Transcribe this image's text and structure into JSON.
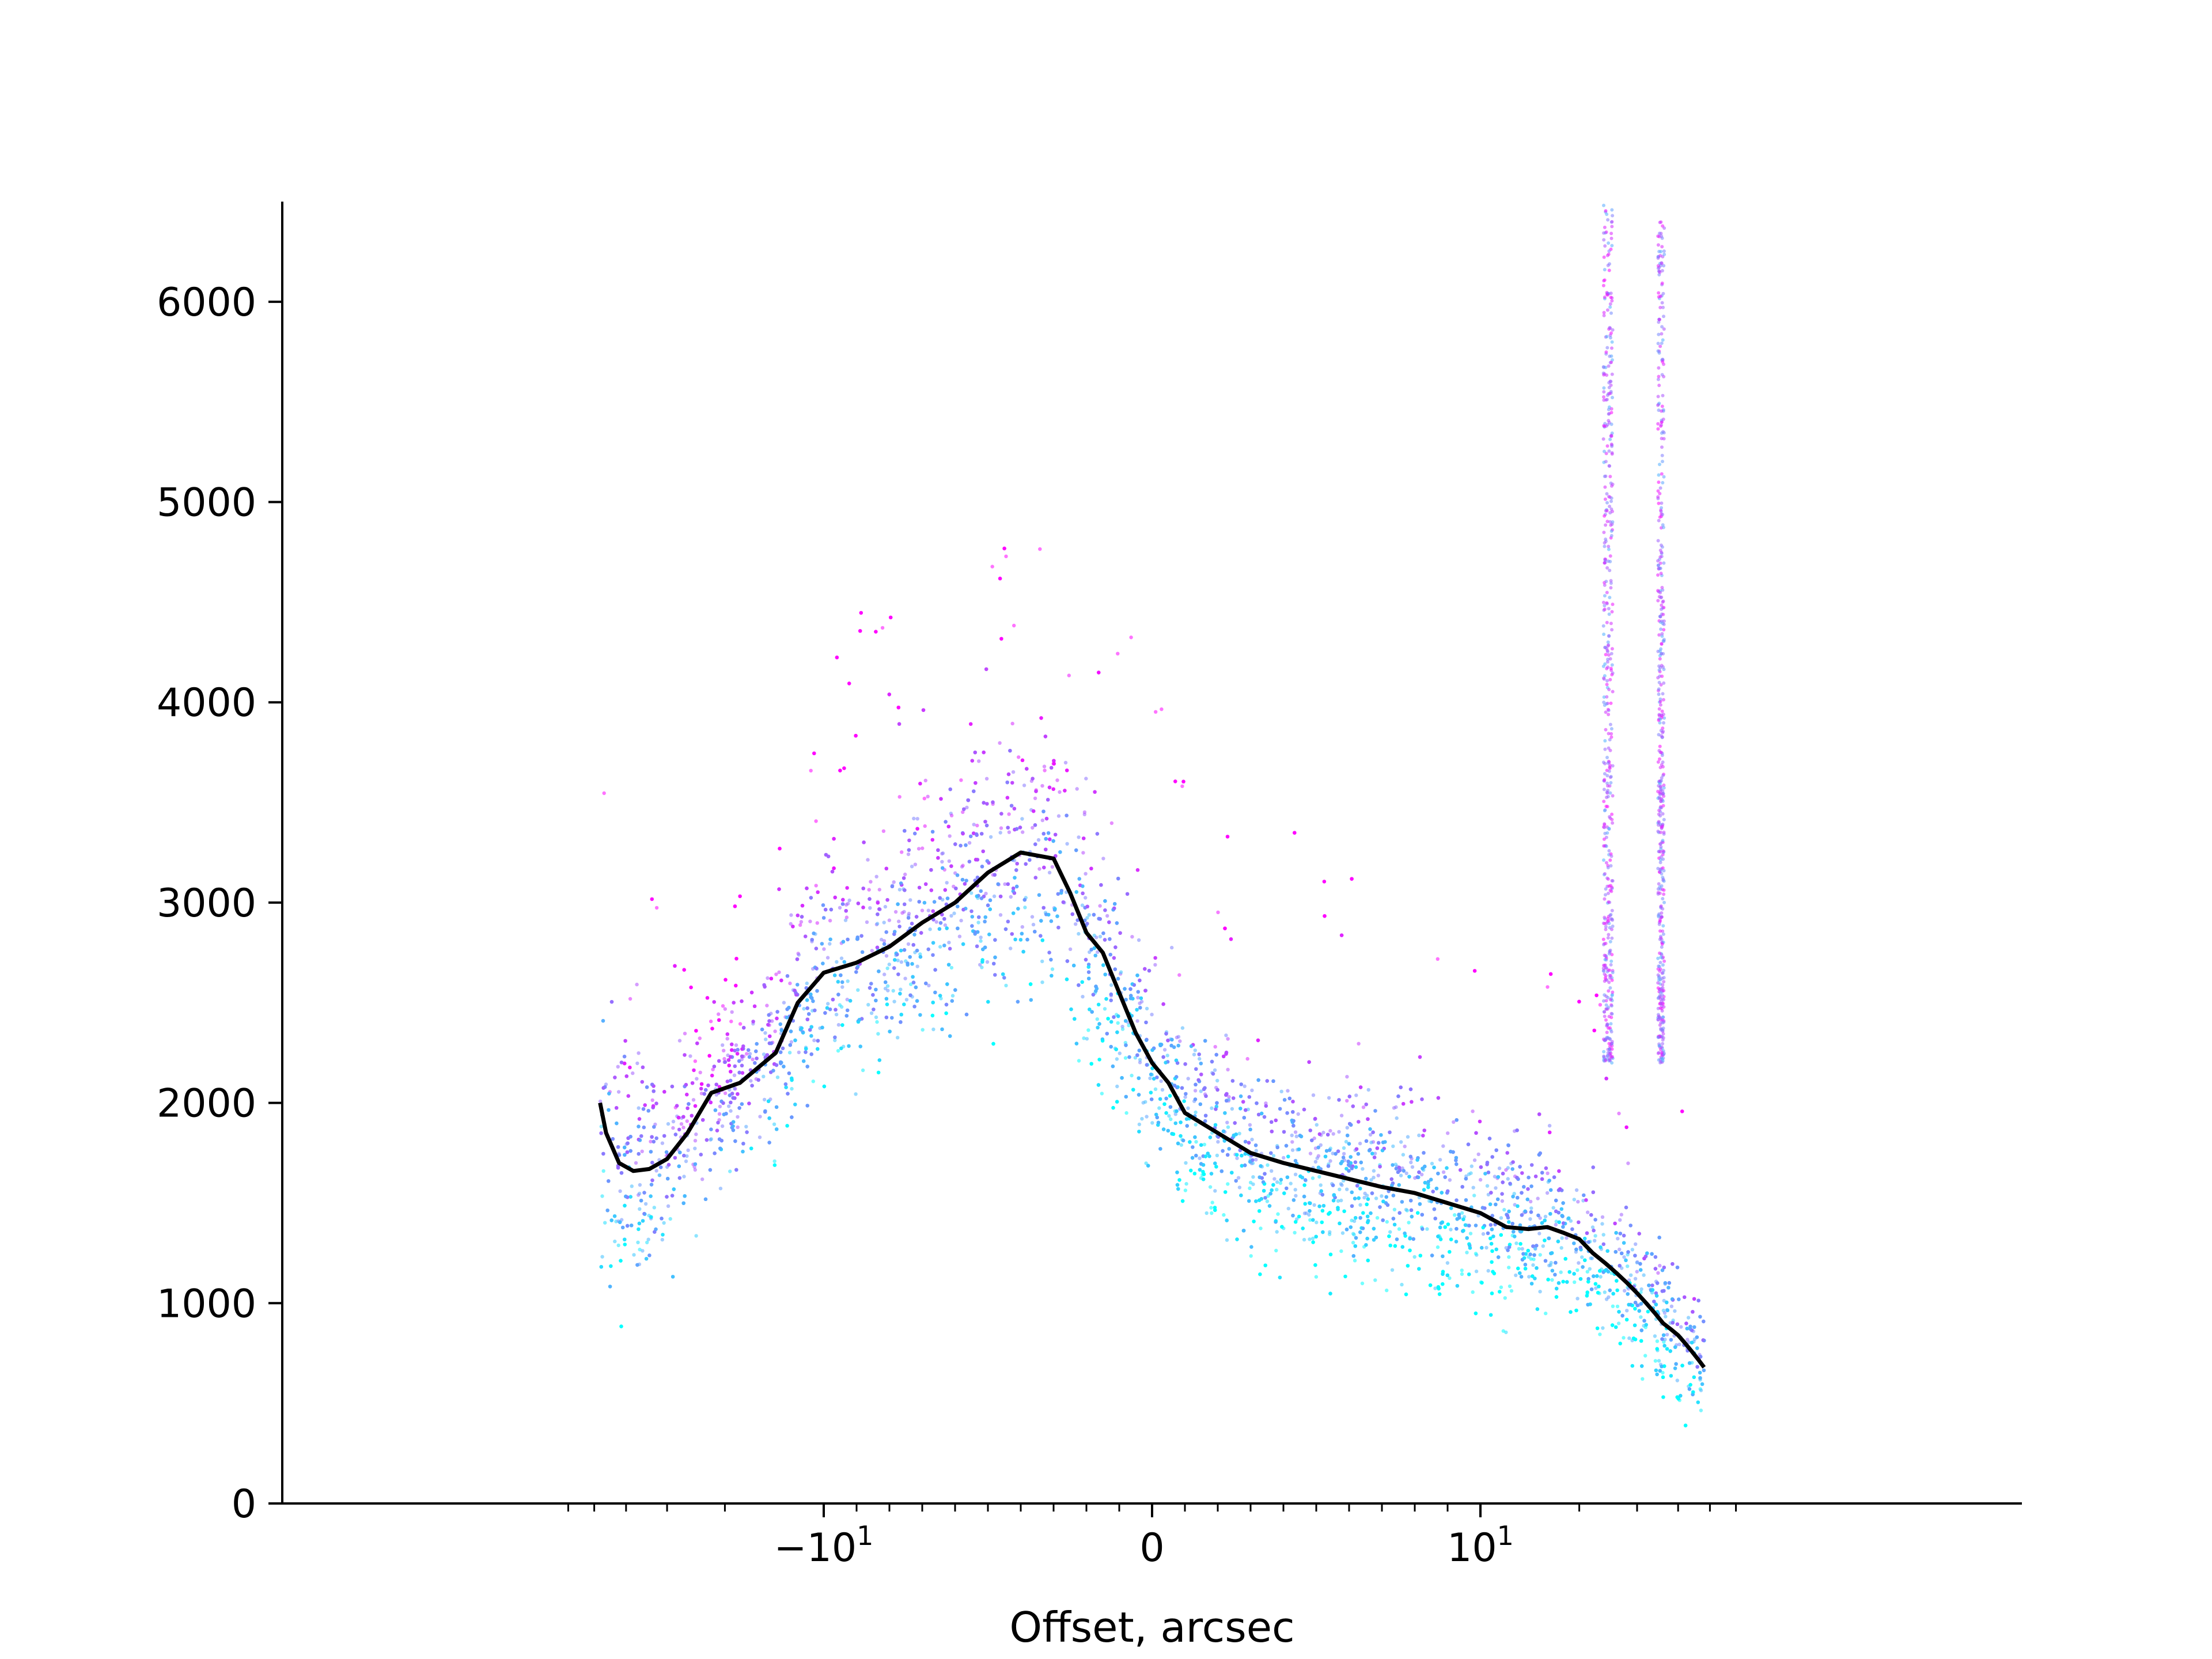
{
  "chart_data": {
    "type": "scatter",
    "title": "",
    "xlabel": "Offset, arcsec",
    "ylabel": "",
    "xscale": "symlog",
    "xlim": [
      -60,
      60
    ],
    "ylim": [
      0,
      6500
    ],
    "grid": false,
    "legend": "none",
    "y_ticks": [
      {
        "value": 0,
        "label": "0"
      },
      {
        "value": 1000,
        "label": "1000"
      },
      {
        "value": 2000,
        "label": "2000"
      },
      {
        "value": 3000,
        "label": "3000"
      },
      {
        "value": 4000,
        "label": "4000"
      },
      {
        "value": 5000,
        "label": "5000"
      },
      {
        "value": 6000,
        "label": "6000"
      }
    ],
    "x_ticks": [
      {
        "value": -10,
        "base": "−10",
        "exp": "1"
      },
      {
        "value": 0,
        "base": "0",
        "exp": ""
      },
      {
        "value": 10,
        "base": "10",
        "exp": "1"
      }
    ],
    "x_minor_ticks": [
      -60,
      -50,
      -40,
      -30,
      -20,
      -9,
      -8,
      -7,
      -6,
      -5,
      -4,
      -3,
      -2,
      -1,
      1,
      2,
      3,
      4,
      5,
      6,
      7,
      8,
      9,
      20,
      30,
      40,
      50,
      60
    ],
    "scatter_colormap": [
      "#00ffff",
      "#ff00ff"
    ],
    "series": [
      {
        "kind": "line",
        "color": "#000000",
        "x": [
          -48,
          -46,
          -42,
          -38,
          -34,
          -30,
          -26,
          -22,
          -18,
          -14,
          -12,
          -10,
          -9,
          -8,
          -7,
          -6,
          -5,
          -4,
          -3,
          -2.5,
          -2,
          -1.5,
          -1,
          -0.5,
          0,
          0.5,
          1,
          1.5,
          2,
          2.5,
          3,
          4,
          5,
          6,
          7,
          8,
          9,
          10,
          12,
          14,
          16,
          18,
          20,
          22,
          24,
          26,
          28,
          30,
          32,
          34,
          36,
          38,
          40,
          42,
          44,
          46,
          48
        ],
        "y": [
          2000,
          1850,
          1700,
          1660,
          1670,
          1720,
          1850,
          2050,
          2100,
          2250,
          2500,
          2650,
          2700,
          2780,
          2900,
          3000,
          3150,
          3250,
          3220,
          3050,
          2850,
          2750,
          2550,
          2350,
          2200,
          2100,
          1950,
          1900,
          1850,
          1800,
          1750,
          1700,
          1660,
          1620,
          1580,
          1550,
          1500,
          1450,
          1380,
          1370,
          1380,
          1350,
          1320,
          1250,
          1200,
          1150,
          1100,
          1050,
          1000,
          950,
          900,
          870,
          840,
          800,
          760,
          720,
          680
        ]
      },
      {
        "kind": "scatter_band",
        "name": "",
        "x": [
          -48,
          -44,
          -38,
          -30,
          -24,
          -18,
          -14,
          -10,
          -7,
          -5,
          -3,
          -2,
          -1,
          0,
          1,
          2,
          3,
          5,
          7,
          10,
          14,
          18,
          22,
          26,
          30,
          34,
          38,
          42,
          46,
          48
        ],
        "low": [
          900,
          800,
          800,
          850,
          1000,
          1200,
          1500,
          1800,
          2000,
          2100,
          2100,
          2000,
          1900,
          1700,
          1500,
          1350,
          1250,
          1150,
          1100,
          1050,
          950,
          900,
          850,
          800,
          700,
          600,
          500,
          450,
          400,
          350
        ],
        "high": [
          3800,
          3000,
          2800,
          2600,
          2500,
          2700,
          3100,
          3700,
          4000,
          4200,
          4300,
          4100,
          3800,
          3400,
          3100,
          2900,
          2800,
          2700,
          2600,
          2500,
          2300,
          2200,
          2100,
          2000,
          1900,
          1800,
          1700,
          1500,
          1300,
          1200
        ]
      }
    ],
    "spikes": [
      {
        "x": 24.5,
        "from": 2200,
        "to": 6500
      },
      {
        "x": 35.5,
        "from": 2200,
        "to": 6400
      }
    ]
  }
}
